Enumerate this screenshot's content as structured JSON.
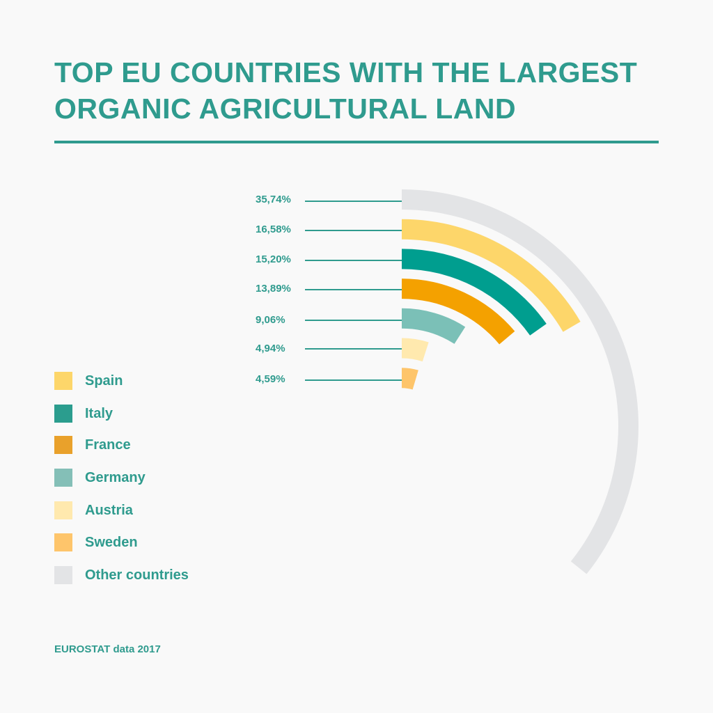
{
  "header": {
    "title_line1": "TOP EU COUNTRIES WITH THE LARGEST",
    "title_line2": "ORGANIC AGRICULTURAL LAND"
  },
  "footer": {
    "source": "EUROSTAT data 2017"
  },
  "colors": {
    "text": "#2f9b8e",
    "background": "#f9f9f9"
  },
  "chart_data": {
    "type": "radial-bar",
    "title": "TOP EU COUNTRIES WITH THE LARGEST ORGANIC AGRICULTURAL LAND",
    "unit": "% of EU organic agricultural land",
    "legend_position": "left",
    "categories": [
      "Other countries",
      "Spain",
      "Italy",
      "France",
      "Germany",
      "Austria",
      "Sweden"
    ],
    "values": [
      35.74,
      16.58,
      15.2,
      13.89,
      9.06,
      4.94,
      4.59
    ],
    "labels": [
      "35,74%",
      "16,58%",
      "15,20%",
      "13,89%",
      "9,06%",
      "4,94%",
      "4,59%"
    ],
    "colors": [
      "#e3e4e6",
      "#fdd66a",
      "#009e8f",
      "#f4a100",
      "#7bc0b7",
      "#ffe9ae",
      "#fec56b"
    ],
    "source": "EUROSTAT data 2017"
  },
  "legend": [
    {
      "label": "Spain",
      "color": "#fdd66a"
    },
    {
      "label": "Italy",
      "color": "#2b9d8e"
    },
    {
      "label": "France",
      "color": "#e9a12b"
    },
    {
      "label": "Germany",
      "color": "#84bfb7"
    },
    {
      "label": "Austria",
      "color": "#ffe9ae"
    },
    {
      "label": "Sweden",
      "color": "#fec56b"
    },
    {
      "label": "Other countries",
      "color": "#e3e4e6"
    }
  ]
}
